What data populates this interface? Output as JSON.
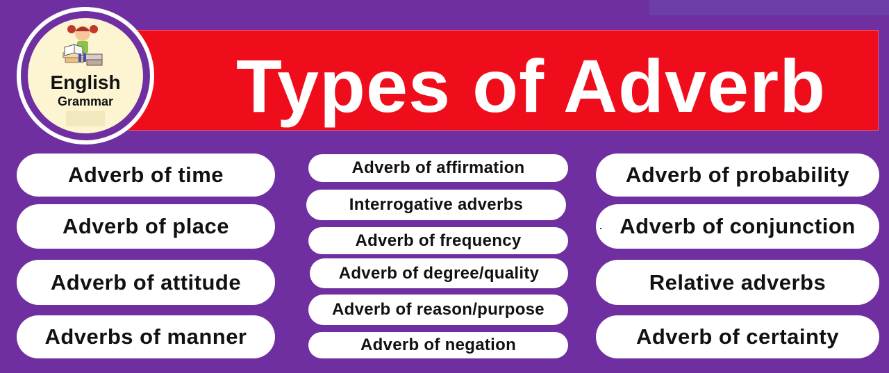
{
  "banner": {
    "title": "Types of Adverb"
  },
  "logo": {
    "line1": "English",
    "line2": "Grammar",
    "figure_icon": "girl-reading-books-icon"
  },
  "columns": {
    "left": [
      "Adverb of time",
      "Adverb of place",
      "Adverb of attitude",
      "Adverbs of manner"
    ],
    "middle": [
      "Adverb of affirmation",
      "Interrogative adverbs",
      "Adverb of frequency",
      "Adverb of degree/quality",
      "Adverb of reason/purpose",
      "Adverb of negation"
    ],
    "right": [
      "Adverb of probability",
      "Adverb of conjunction",
      "Relative adverbs",
      "Adverb of certainty"
    ]
  },
  "colors": {
    "background": "#6f2fa0",
    "banner": "#ef0d1b",
    "pill": "#ffffff",
    "text": "#111111"
  }
}
